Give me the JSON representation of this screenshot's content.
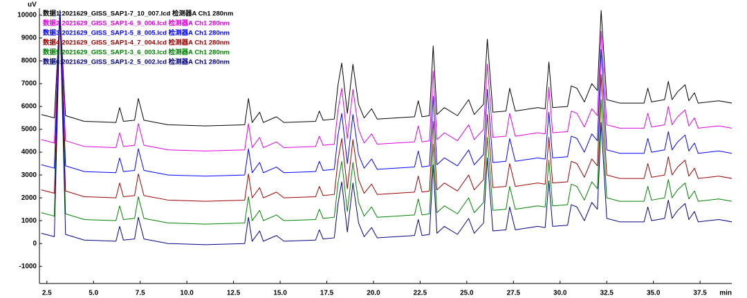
{
  "chart_data": {
    "type": "line",
    "x_label": "min",
    "y_label": "uV",
    "xlim": [
      2.1,
      39.2
    ],
    "ylim": [
      -1750,
      10300
    ],
    "xticks": [
      2.5,
      {
        "value": 5,
        "label": "5.0"
      },
      7.5,
      {
        "value": 10,
        "label": "10.0"
      },
      12.5,
      {
        "value": 15,
        "label": "15.0"
      },
      17.5,
      {
        "value": 20,
        "label": "20.0"
      },
      22.5,
      {
        "value": 25,
        "label": "25.0"
      },
      27.5,
      {
        "value": 30,
        "label": "30.0"
      },
      32.5,
      {
        "value": 35,
        "label": "35.0"
      },
      37.5
    ],
    "yticks": [
      -1000,
      0,
      1000,
      2000,
      3000,
      4000,
      5000,
      6000,
      7000,
      8000,
      9000,
      10000
    ],
    "grid": false,
    "legend": "upper left",
    "x": [
      2.2,
      2.9,
      3.2,
      3.5,
      4.5,
      6.2,
      6.4,
      6.6,
      7.2,
      7.4,
      7.7,
      9.0,
      11.0,
      13.1,
      13.3,
      13.5,
      13.9,
      14.1,
      14.8,
      15.2,
      16.9,
      17.1,
      17.3,
      17.9,
      18.1,
      18.3,
      18.6,
      18.9,
      19.2,
      19.5,
      19.9,
      20.2,
      22.2,
      22.4,
      22.6,
      23.0,
      23.2,
      23.4,
      23.8,
      24.5,
      25.1,
      25.4,
      25.9,
      26.1,
      26.4,
      27.1,
      27.3,
      27.6,
      28.8,
      29.2,
      29.4,
      29.6,
      30.4,
      30.6,
      30.9,
      31.3,
      31.7,
      32.0,
      32.2,
      32.5,
      33.2,
      34.5,
      34.7,
      34.9,
      35.6,
      35.8,
      36.0,
      36.3,
      36.7,
      36.9,
      37.2,
      37.4,
      38.5,
      39.2
    ],
    "series": [
      {
        "name": "数据1:2021629_GISS_SAP1-7_10_007.lcd 检测器A Ch1 280nm",
        "color": "#000000",
        "values": [
          5650,
          5500,
          10200,
          5600,
          5350,
          5300,
          5950,
          5350,
          5400,
          6350,
          5400,
          5200,
          5150,
          5200,
          6350,
          5300,
          5750,
          5300,
          5550,
          5300,
          5350,
          5800,
          5400,
          5450,
          6950,
          7900,
          5700,
          7850,
          6100,
          5500,
          5900,
          5450,
          5550,
          6250,
          5550,
          5600,
          8650,
          5650,
          5950,
          5600,
          6300,
          5650,
          6100,
          8950,
          5750,
          5800,
          6800,
          5800,
          5950,
          5900,
          7950,
          5950,
          6000,
          6900,
          6800,
          6200,
          7000,
          6700,
          10200,
          6300,
          6150,
          6150,
          6800,
          6200,
          6300,
          7100,
          6300,
          6650,
          6950,
          6250,
          6600,
          6150,
          6250,
          6150
        ]
      },
      {
        "name": "数据2:2021629_GISS_SAP1-6_9_006.lcd 检测器A Ch1 280nm",
        "color": "#e000e0",
        "values": [
          4550,
          4400,
          10200,
          4500,
          4250,
          4200,
          4850,
          4250,
          4300,
          5250,
          4300,
          4100,
          4050,
          4100,
          5250,
          4200,
          4650,
          4200,
          4450,
          4200,
          4250,
          4700,
          4300,
          4350,
          5850,
          6800,
          4600,
          6750,
          5000,
          4400,
          4800,
          4350,
          4450,
          5150,
          4450,
          4500,
          7550,
          4550,
          4850,
          4500,
          5200,
          4550,
          5000,
          7850,
          4650,
          4700,
          5700,
          4700,
          4850,
          4800,
          6850,
          4850,
          4900,
          5800,
          5700,
          5100,
          5900,
          5600,
          9300,
          5200,
          5050,
          5050,
          5700,
          5100,
          5200,
          6000,
          5200,
          5550,
          5850,
          5150,
          5500,
          5050,
          5150,
          5050
        ]
      },
      {
        "name": "数据3:2021629_GISS_SAP1-5_8_005.lcd 检测器A Ch1 280nm",
        "color": "#0000ff",
        "values": [
          3450,
          3300,
          10200,
          3400,
          3150,
          3100,
          3750,
          3150,
          3200,
          4150,
          3200,
          3000,
          2950,
          3000,
          4150,
          3100,
          3550,
          3100,
          3350,
          3100,
          3150,
          3600,
          3200,
          3250,
          4750,
          5700,
          3500,
          5650,
          3900,
          3300,
          3700,
          3250,
          3350,
          4050,
          3350,
          3400,
          6450,
          3450,
          3750,
          3400,
          4100,
          3450,
          3900,
          6750,
          3550,
          3600,
          4600,
          3600,
          3750,
          3700,
          5750,
          3750,
          3800,
          4700,
          4600,
          4000,
          4800,
          4500,
          8500,
          4100,
          3950,
          3950,
          4600,
          4000,
          4100,
          4900,
          4100,
          4450,
          4750,
          4050,
          4400,
          3950,
          4050,
          3950
        ]
      },
      {
        "name": "数据4:2021629_GISS_SAP1-4_7_004.lcd 检测器A Ch1 280nm",
        "color": "#990000",
        "values": [
          2350,
          2200,
          10200,
          2300,
          2050,
          2000,
          2650,
          2050,
          2100,
          3050,
          2100,
          1900,
          1850,
          1900,
          3050,
          2000,
          2450,
          2000,
          2250,
          2000,
          2050,
          2500,
          2100,
          2150,
          3650,
          4600,
          2400,
          4550,
          2800,
          2200,
          2600,
          2150,
          2250,
          2950,
          2250,
          2300,
          5350,
          2350,
          2650,
          2300,
          3000,
          2350,
          2800,
          5650,
          2450,
          2500,
          3500,
          2500,
          2650,
          2600,
          4650,
          2650,
          2700,
          3600,
          3500,
          2900,
          3700,
          3400,
          7400,
          3000,
          2850,
          2850,
          3500,
          2900,
          3000,
          3800,
          3000,
          3350,
          3650,
          2950,
          3300,
          2850,
          2950,
          2850
        ]
      },
      {
        "name": "数据5:2021629_GISS_SAP1-3_6_003.lcd 检测器A Ch1 280nm",
        "color": "#008000",
        "values": [
          1350,
          1200,
          10200,
          1300,
          1050,
          1000,
          1650,
          1050,
          1100,
          2050,
          1100,
          900,
          850,
          900,
          2050,
          1000,
          1450,
          1000,
          1250,
          1000,
          1050,
          1500,
          1100,
          1150,
          2650,
          3600,
          1400,
          3550,
          1800,
          1200,
          1600,
          1150,
          1250,
          1950,
          1250,
          1300,
          4350,
          1350,
          1650,
          1300,
          2000,
          1350,
          1800,
          4650,
          1450,
          1500,
          2500,
          1500,
          1650,
          1600,
          3650,
          1650,
          1700,
          2600,
          2500,
          1900,
          2700,
          2400,
          6300,
          2000,
          1850,
          1850,
          2500,
          1900,
          2000,
          2800,
          2000,
          2350,
          2650,
          1950,
          2300,
          1850,
          1950,
          1850
        ]
      },
      {
        "name": "数据6:2021629_GISS_SAP1-2_5_002.lcd 检测器A Ch1 280nm",
        "color": "#000080",
        "values": [
          450,
          300,
          10200,
          400,
          150,
          100,
          750,
          150,
          200,
          1150,
          200,
          0,
          -50,
          0,
          1150,
          100,
          550,
          100,
          350,
          100,
          150,
          600,
          200,
          250,
          1750,
          2700,
          500,
          2650,
          900,
          300,
          700,
          250,
          350,
          1050,
          350,
          400,
          3450,
          450,
          750,
          400,
          1100,
          450,
          900,
          3750,
          550,
          600,
          1600,
          600,
          750,
          700,
          2750,
          750,
          800,
          1700,
          1600,
          1000,
          1800,
          1500,
          5300,
          1100,
          950,
          950,
          1600,
          1000,
          1100,
          1900,
          1100,
          1450,
          1750,
          1050,
          1400,
          950,
          1050,
          950
        ]
      }
    ]
  }
}
